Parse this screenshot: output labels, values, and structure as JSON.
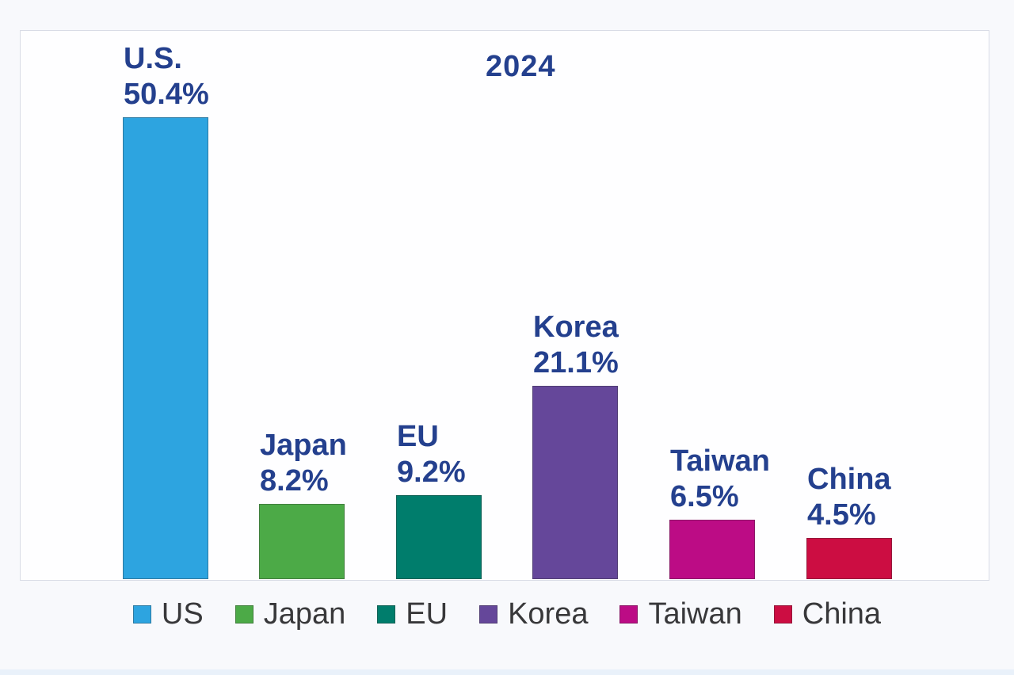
{
  "chart_data": {
    "type": "bar",
    "title": "2024",
    "categories": [
      "US",
      "Japan",
      "EU",
      "Korea",
      "Taiwan",
      "China"
    ],
    "values": [
      50.4,
      8.2,
      9.2,
      21.1,
      6.5,
      4.5
    ],
    "bar_label_names": [
      "U.S.",
      "Japan",
      "EU",
      "Korea",
      "Taiwan",
      "China"
    ],
    "bar_label_values": [
      "50.4%",
      "8.2%",
      "9.2%",
      "21.1%",
      "6.5%",
      "4.5%"
    ],
    "colors": [
      "#2DA4E0",
      "#4CAA47",
      "#007D6C",
      "#65479A",
      "#BC0C85",
      "#CC0D42"
    ],
    "legend": [
      "US",
      "Japan",
      "EU",
      "Korea",
      "Taiwan",
      "China"
    ],
    "legend_position": "bottom",
    "xlabel": "",
    "ylabel": "",
    "ylim": [
      0,
      52
    ],
    "grid": false,
    "accent_colors": {
      "data_label_text": "#24408E",
      "legend_text": "#38383A",
      "plot_border": "#D9DCE6",
      "plot_background": "#FEFEFF",
      "page_background": "#F8F9FC"
    }
  }
}
